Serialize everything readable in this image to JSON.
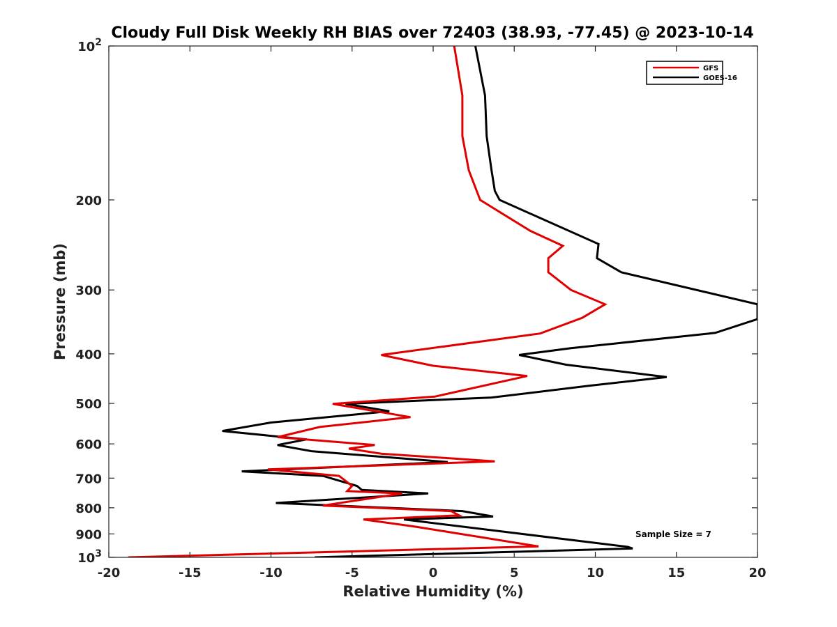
{
  "chart_data": {
    "type": "line",
    "title": "Cloudy Full Disk Weekly RH BIAS over 72403 (38.93, -77.45) @ 2023-10-14",
    "xlabel": "Relative Humidity (%)",
    "ylabel": "Pressure (mb)",
    "xlim": [
      -20,
      20
    ],
    "ylim": [
      100,
      1000
    ],
    "y_scale": "log",
    "y_reversed": true,
    "grid": false,
    "legend_position": "top-right",
    "x_ticks": [
      -20,
      -15,
      -10,
      -5,
      0,
      5,
      10,
      15,
      20
    ],
    "x_tick_labels": [
      "-20",
      "-15",
      "-10",
      "-5",
      "0",
      "5",
      "10",
      "15",
      "20"
    ],
    "y_ticks": [
      {
        "value": 100,
        "base": "10",
        "exp": "2"
      },
      {
        "value": 200,
        "base": "200",
        "exp": ""
      },
      {
        "value": 300,
        "base": "300",
        "exp": ""
      },
      {
        "value": 400,
        "base": "400",
        "exp": ""
      },
      {
        "value": 500,
        "base": "500",
        "exp": ""
      },
      {
        "value": 600,
        "base": "600",
        "exp": ""
      },
      {
        "value": 700,
        "base": "700",
        "exp": ""
      },
      {
        "value": 800,
        "base": "800",
        "exp": ""
      },
      {
        "value": 900,
        "base": "900",
        "exp": ""
      },
      {
        "value": 1000,
        "base": "10",
        "exp": "3"
      }
    ],
    "series": [
      {
        "name": "GFS",
        "color": "#e00000",
        "points": [
          [
            1.3,
            100
          ],
          [
            1.8,
            125
          ],
          [
            1.8,
            150
          ],
          [
            2.2,
            175
          ],
          [
            2.9,
            200
          ],
          [
            6.0,
            230
          ],
          [
            8.0,
            246
          ],
          [
            7.1,
            260
          ],
          [
            7.1,
            277
          ],
          [
            8.5,
            300
          ],
          [
            10.6,
            320
          ],
          [
            9.2,
            340
          ],
          [
            6.6,
            365
          ],
          [
            -3.2,
            402
          ],
          [
            0.0,
            422
          ],
          [
            5.8,
            442
          ],
          [
            0.1,
            485
          ],
          [
            -6.2,
            501
          ],
          [
            -1.4,
            532
          ],
          [
            -7.0,
            556
          ],
          [
            -9.6,
            582
          ],
          [
            -3.6,
            603
          ],
          [
            -5.2,
            613
          ],
          [
            -3.2,
            627
          ],
          [
            3.8,
            649
          ],
          [
            -10.2,
            673
          ],
          [
            -5.8,
            693
          ],
          [
            -5.0,
            725
          ],
          [
            -5.3,
            742
          ],
          [
            -1.9,
            750
          ],
          [
            -6.8,
            792
          ],
          [
            1.1,
            812
          ],
          [
            1.6,
            828
          ],
          [
            -4.3,
            843
          ],
          [
            -1.2,
            870
          ],
          [
            6.5,
            952
          ],
          [
            -18.8,
            1000
          ]
        ]
      },
      {
        "name": "GOES-16",
        "color": "#000000",
        "points": [
          [
            2.6,
            100
          ],
          [
            3.2,
            125
          ],
          [
            3.3,
            150
          ],
          [
            3.6,
            175
          ],
          [
            3.8,
            192
          ],
          [
            4.1,
            200
          ],
          [
            10.2,
            244
          ],
          [
            10.1,
            260
          ],
          [
            11.6,
            277
          ],
          [
            20.0,
            320
          ],
          [
            20.0,
            342
          ],
          [
            17.4,
            364
          ],
          [
            8.5,
            390
          ],
          [
            5.3,
            402
          ],
          [
            8.2,
            420
          ],
          [
            14.4,
            444
          ],
          [
            9.6,
            462
          ],
          [
            3.6,
            487
          ],
          [
            -5.4,
            501
          ],
          [
            -2.7,
            518
          ],
          [
            -10.0,
            545
          ],
          [
            -13.0,
            566
          ],
          [
            -7.8,
            588
          ],
          [
            -9.6,
            603
          ],
          [
            -7.5,
            620
          ],
          [
            0.9,
            651
          ],
          [
            -11.8,
            679
          ],
          [
            -6.8,
            693
          ],
          [
            -4.7,
            725
          ],
          [
            -4.4,
            738
          ],
          [
            -0.3,
            750
          ],
          [
            -9.7,
            783
          ],
          [
            1.8,
            812
          ],
          [
            3.7,
            832
          ],
          [
            -1.8,
            843
          ],
          [
            12.0,
            954
          ],
          [
            12.3,
            961
          ],
          [
            -7.3,
            1000
          ]
        ]
      }
    ],
    "annotations": [
      "Sample Size = 7"
    ]
  }
}
